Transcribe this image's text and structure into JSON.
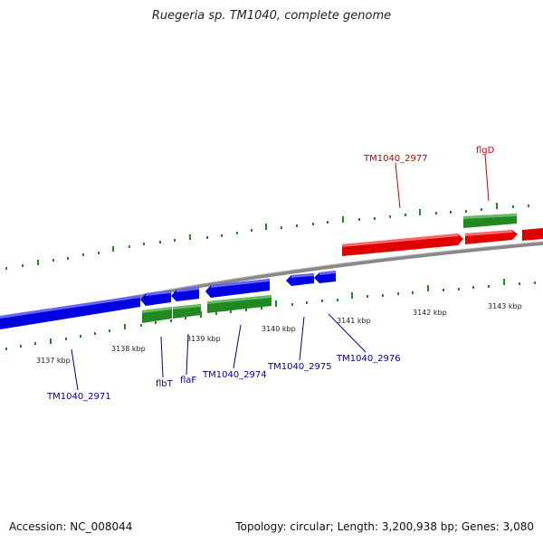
{
  "title": "Ruegeria sp. TM1040, complete genome",
  "footer": {
    "accession": "Accession: NC_008044",
    "summary": "Topology: circular; Length: 3,200,938 bp; Genes: 3,080"
  },
  "colors": {
    "forward": "#e00000",
    "reverse": "#0000e0",
    "rna": "#228822",
    "tick": "#228822",
    "backbone": "#888888",
    "label_forward": "#cc0000",
    "label_reverse": "#000099"
  },
  "scale_labels": [
    "3137 kbp",
    "3138 kbp",
    "3139 kbp",
    "3140 kbp",
    "3141 kbp",
    "3142 kbp",
    "3143 kbp"
  ],
  "forward_labels": [
    "TM1040_2977",
    "flgD"
  ],
  "reverse_labels": [
    "TM1040_2971",
    "flbT",
    "flaF",
    "TM1040_2974",
    "TM1040_2975",
    "TM1040_2976"
  ]
}
